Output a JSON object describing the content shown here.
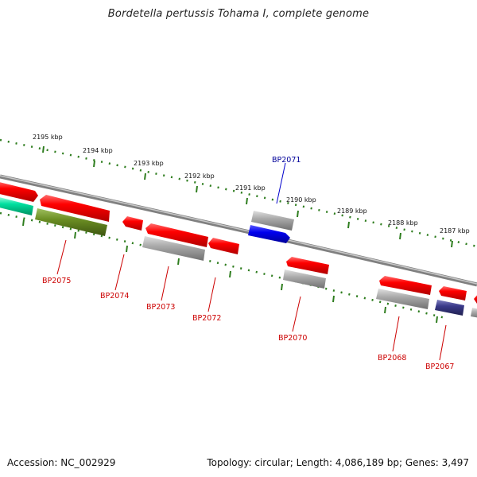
{
  "title": "Bordetella pertussis Tohama I, complete genome",
  "footer": {
    "accession": "Accession: NC_002929",
    "info": "Topology: circular; Length: 4,086,189 bp; Genes: 3,497"
  },
  "colors": {
    "gene_red": "#ff0000",
    "gene_grey": "#aaaaaa",
    "gene_blue": "#0000ee",
    "gene_navy": "#3a3a8a",
    "gene_green": "#00e0a0",
    "gene_olive": "#6b8e23",
    "tick_green": "#2e7d1e",
    "backbone": "#888888",
    "label_red": "#cc0000",
    "label_blue": "#000099"
  },
  "scale_labels": [
    "2195 kbp",
    "2194 kbp",
    "2193 kbp",
    "2192 kbp",
    "2191 kbp",
    "2190 kbp",
    "2189 kbp",
    "2188 kbp",
    "2187 kbp"
  ],
  "gene_labels": [
    {
      "text": "BP2075",
      "color": "red"
    },
    {
      "text": "BP2074",
      "color": "red"
    },
    {
      "text": "BP2073",
      "color": "red"
    },
    {
      "text": "BP2072",
      "color": "red"
    },
    {
      "text": "BP2071",
      "color": "blue"
    },
    {
      "text": "BP2070",
      "color": "red"
    },
    {
      "text": "BP2068",
      "color": "red"
    },
    {
      "text": "BP2067",
      "color": "red"
    }
  ]
}
